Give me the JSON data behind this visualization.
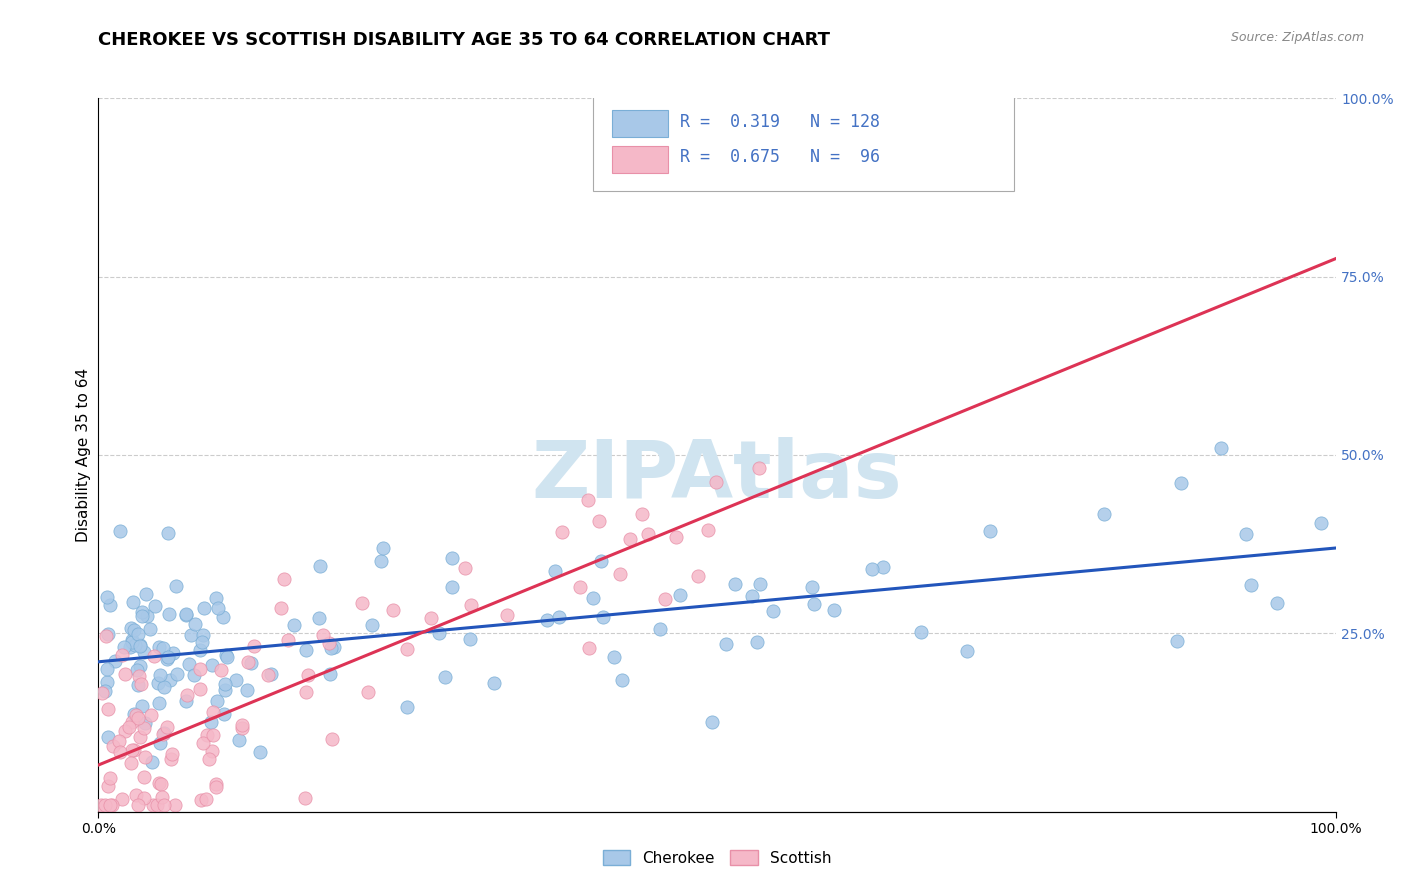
{
  "title": "CHEROKEE VS SCOTTISH DISABILITY AGE 35 TO 64 CORRELATION CHART",
  "source": "Source: ZipAtlas.com",
  "ylabel": "Disability Age 35 to 64",
  "xlim": [
    0.0,
    1.0
  ],
  "ylim": [
    0.0,
    1.0
  ],
  "ytick_positions": [
    0.25,
    0.5,
    0.75,
    1.0
  ],
  "ytick_labels": [
    "25.0%",
    "50.0%",
    "75.0%",
    "100.0%"
  ],
  "grid_color": "#cccccc",
  "cherokee_color": "#a8c8e8",
  "cherokee_edge": "#7aaed6",
  "scottish_color": "#f5b8c8",
  "scottish_edge": "#e890a8",
  "trendline_cherokee": "#2255bb",
  "trendline_scottish": "#dd3355",
  "watermark_color": "#d0e4f0",
  "R_cherokee": 0.319,
  "N_cherokee": 128,
  "R_scottish": 0.675,
  "N_scottish": 96,
  "title_fontsize": 13,
  "axis_label_fontsize": 11,
  "tick_fontsize": 10,
  "right_tick_color": "#4472c4",
  "cherokee_trend_start_y": 0.22,
  "cherokee_trend_end_y": 0.365,
  "scottish_trend_start_y": 0.04,
  "scottish_trend_end_y": 0.86
}
